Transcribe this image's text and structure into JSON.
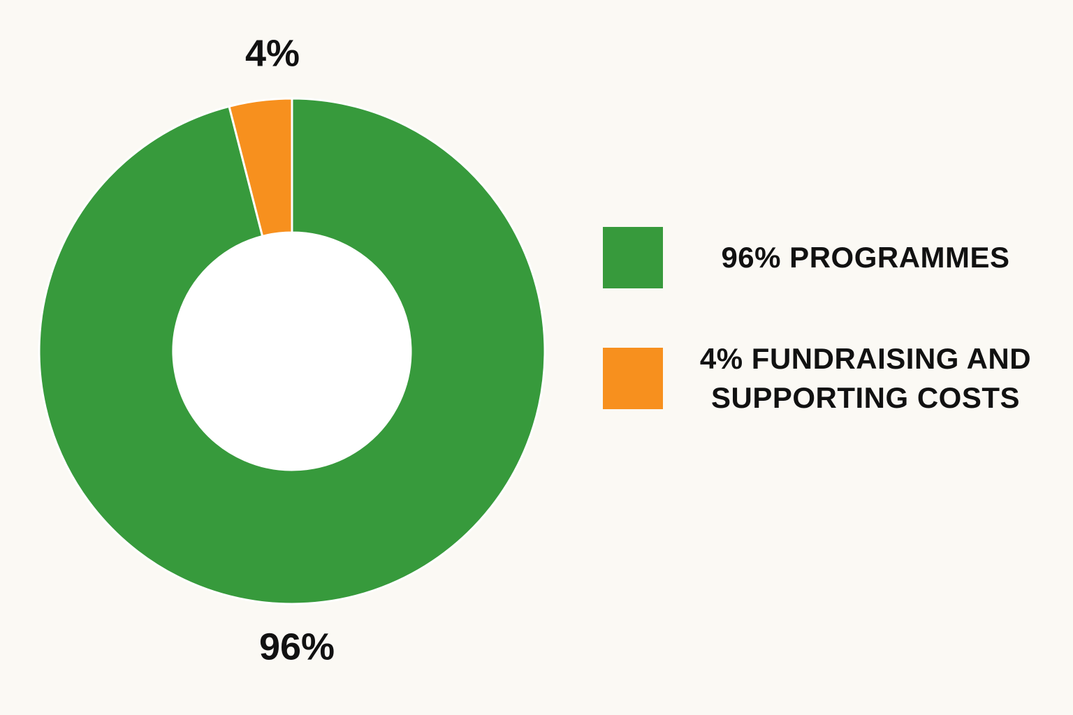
{
  "chart_data": {
    "type": "donut",
    "categories": [
      "96% PROGRAMMES",
      "4% FUNDRAISING AND SUPPORTING COSTS"
    ],
    "values": [
      96,
      4
    ],
    "value_labels": [
      "96%",
      "4%"
    ],
    "colors": [
      "#379a3c",
      "#f7901e"
    ]
  }
}
